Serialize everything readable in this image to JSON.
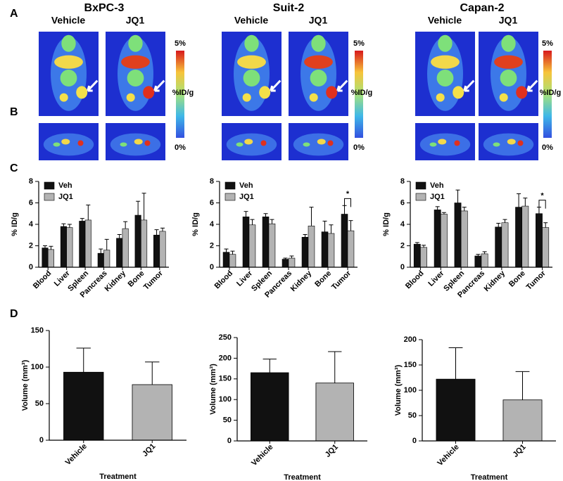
{
  "panel_labels": [
    "A",
    "B",
    "C",
    "D"
  ],
  "image_panels": [
    {
      "title": "BxPC-3",
      "columns": [
        "Vehicle",
        "JQ1"
      ],
      "colorbar": {
        "max": "5%",
        "label": "%ID/g",
        "min": "0%"
      }
    },
    {
      "title": "Suit-2",
      "columns": [
        "Vehicle",
        "JQ1"
      ],
      "colorbar": {
        "max": "5%",
        "label": "%ID/g",
        "min": "0%"
      }
    },
    {
      "title": "Capan-2",
      "columns": [
        "Vehicle",
        "JQ1"
      ],
      "colorbar": {
        "max": "5%",
        "label": "%ID/g",
        "min": "0%"
      }
    }
  ],
  "chart_data": [
    {
      "type": "bar",
      "ylabel": "% ID/g",
      "ylim": [
        0,
        8
      ],
      "yticks": [
        0,
        2,
        4,
        6,
        8
      ],
      "categories": [
        "Blood",
        "Liver",
        "Spleen",
        "Pancreas",
        "Kidney",
        "Bone",
        "Tumor"
      ],
      "series": [
        {
          "name": "Veh",
          "color": "#111111",
          "values": [
            1.8,
            3.8,
            4.3,
            1.3,
            2.7,
            4.85,
            3.0
          ],
          "errors": [
            0.2,
            0.25,
            0.25,
            0.4,
            0.35,
            1.3,
            0.5
          ]
        },
        {
          "name": "JQ1",
          "color": "#b3b3b3",
          "values": [
            1.65,
            3.7,
            4.4,
            1.6,
            3.6,
            4.4,
            3.35
          ],
          "errors": [
            0.3,
            0.3,
            1.4,
            1.0,
            0.65,
            2.5,
            0.3
          ]
        }
      ]
    },
    {
      "type": "bar",
      "ylabel": "% ID/g",
      "ylim": [
        0,
        8
      ],
      "yticks": [
        0,
        2,
        4,
        6,
        8
      ],
      "annotation": "*",
      "categories": [
        "Blood",
        "Liver",
        "Spleen",
        "Pancreas",
        "Kidney",
        "Bone",
        "Tumor"
      ],
      "series": [
        {
          "name": "Veh",
          "color": "#111111",
          "values": [
            1.4,
            4.7,
            4.7,
            0.75,
            2.8,
            3.3,
            4.95
          ],
          "errors": [
            0.3,
            0.5,
            0.3,
            0.1,
            0.25,
            1.0,
            0.8
          ]
        },
        {
          "name": "JQ1",
          "color": "#b3b3b3",
          "values": [
            1.2,
            3.95,
            4.05,
            0.85,
            3.85,
            3.15,
            3.4
          ],
          "errors": [
            0.3,
            0.5,
            0.4,
            0.2,
            1.75,
            0.8,
            0.95
          ]
        }
      ]
    },
    {
      "type": "bar",
      "ylabel": "% ID/g",
      "ylim": [
        0,
        8
      ],
      "yticks": [
        0,
        2,
        4,
        6,
        8
      ],
      "annotation": "*",
      "categories": [
        "Blood",
        "Liver",
        "Spleen",
        "Pancreas",
        "Kidney",
        "Bone",
        "Tumor"
      ],
      "series": [
        {
          "name": "Veh",
          "color": "#111111",
          "values": [
            2.15,
            5.35,
            6.0,
            1.05,
            3.75,
            5.6,
            5.0
          ],
          "errors": [
            0.15,
            0.3,
            1.2,
            0.15,
            0.35,
            1.25,
            0.6
          ]
        },
        {
          "name": "JQ1",
          "color": "#b3b3b3",
          "values": [
            1.85,
            4.95,
            5.25,
            1.25,
            4.15,
            5.7,
            3.7
          ],
          "errors": [
            0.2,
            0.15,
            0.35,
            0.2,
            0.3,
            0.75,
            0.45
          ]
        }
      ]
    },
    {
      "type": "bar",
      "ylabel": "Volume (mm³)",
      "xlabel": "Treatment",
      "ylim": [
        0,
        150
      ],
      "yticks": [
        0,
        50,
        100,
        150
      ],
      "categories": [
        "Vehicle",
        "JQ1"
      ],
      "values": [
        93,
        76
      ],
      "errors": [
        33,
        31
      ],
      "colors": [
        "#111111",
        "#b3b3b3"
      ]
    },
    {
      "type": "bar",
      "ylabel": "Volume (mm³)",
      "xlabel": "Treatment",
      "ylim": [
        0,
        250
      ],
      "yticks": [
        0,
        50,
        100,
        150,
        200,
        250
      ],
      "categories": [
        "Vehicle",
        "JQ1"
      ],
      "values": [
        165,
        140
      ],
      "errors": [
        33,
        76
      ],
      "colors": [
        "#111111",
        "#b3b3b3"
      ]
    },
    {
      "type": "bar",
      "ylabel": "Volume (mm³)",
      "xlabel": "Treatment",
      "ylim": [
        0,
        200
      ],
      "yticks": [
        0,
        50,
        100,
        150,
        200
      ],
      "categories": [
        "Vehicle",
        "JQ1"
      ],
      "values": [
        122,
        81
      ],
      "errors": [
        62,
        56
      ],
      "colors": [
        "#111111",
        "#b3b3b3"
      ]
    }
  ]
}
